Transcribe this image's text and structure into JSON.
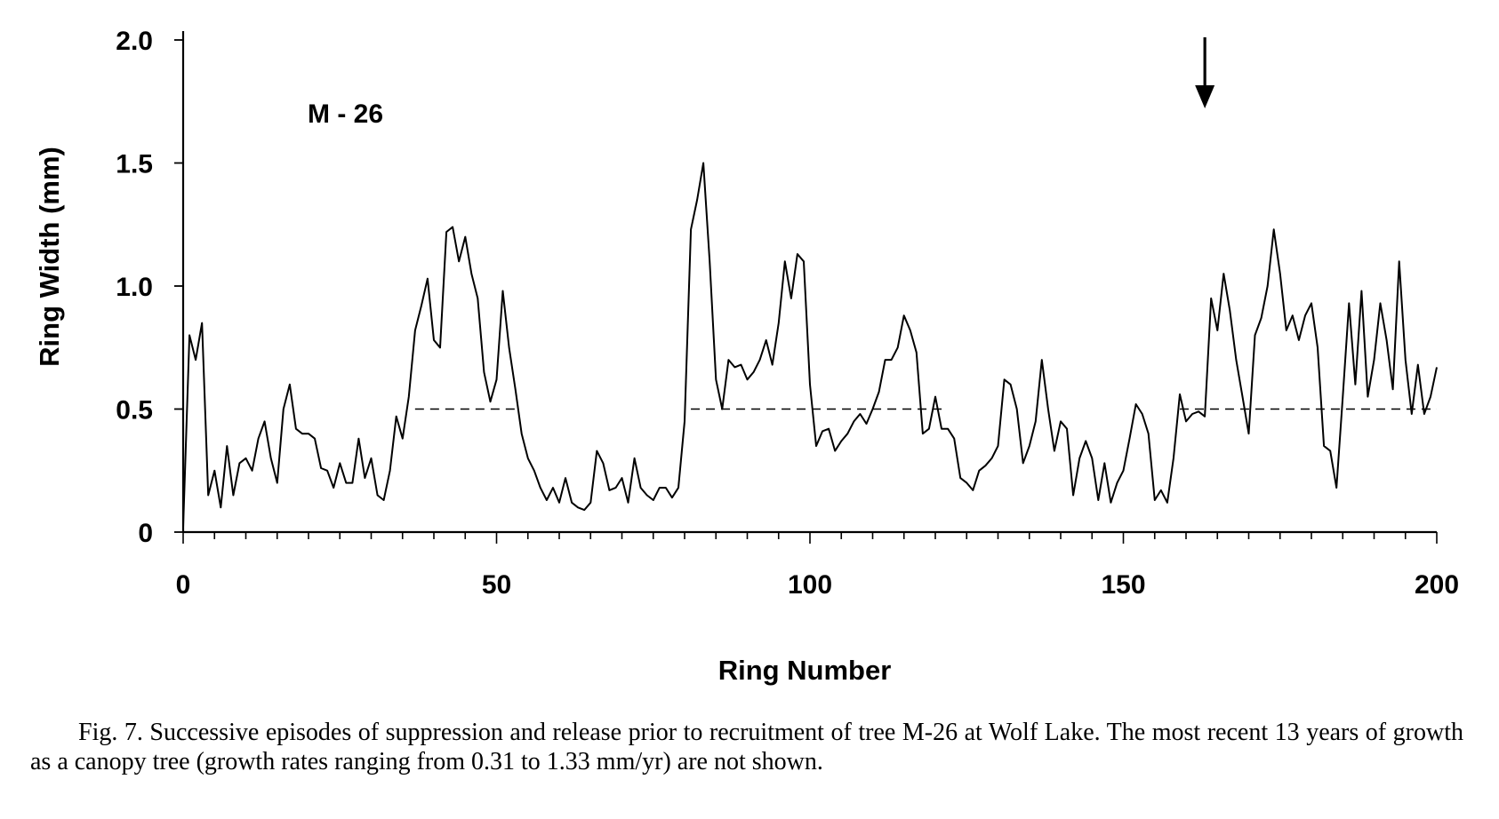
{
  "chart_data": {
    "type": "line",
    "panel_label": "M - 26",
    "xlabel": "Ring Number",
    "ylabel": "Ring Width (mm)",
    "xlim": [
      0,
      200
    ],
    "ylim": [
      0,
      2.0
    ],
    "x_ticks": [
      "0",
      "50",
      "100",
      "150",
      "200"
    ],
    "y_ticks": [
      "0",
      "0.5",
      "1.0",
      "1.5",
      "2.0"
    ],
    "grid": false,
    "legend": "none",
    "threshold_segments": [
      {
        "y": 0.5,
        "x_start": 37,
        "x_end": 53
      },
      {
        "y": 0.5,
        "x_start": 81,
        "x_end": 121
      },
      {
        "y": 0.5,
        "x_start": 159,
        "x_end": 200
      }
    ],
    "arrow_at_x": 163,
    "series": [
      {
        "x": [
          0,
          1,
          2,
          3,
          4,
          5,
          6,
          7,
          8,
          9,
          10,
          11,
          12,
          13,
          14,
          15,
          16,
          17,
          18,
          19,
          20,
          21,
          22,
          23,
          24,
          25,
          26,
          27,
          28,
          29,
          30,
          31,
          32,
          33,
          34,
          35,
          36,
          37,
          38,
          39,
          40,
          41,
          42,
          43,
          44,
          45,
          46,
          47,
          48,
          49,
          50,
          51,
          52,
          53,
          54,
          55,
          56,
          57,
          58,
          59,
          60,
          61,
          62,
          63,
          64,
          65,
          66,
          67,
          68,
          69,
          70,
          71,
          72,
          73,
          74,
          75,
          76,
          77,
          78,
          79,
          80,
          81,
          82,
          83,
          84,
          85,
          86,
          87,
          88,
          89,
          90,
          91,
          92,
          93,
          94,
          95,
          96,
          97,
          98,
          99,
          100,
          101,
          102,
          103,
          104,
          105,
          106,
          107,
          108,
          109,
          110,
          111,
          112,
          113,
          114,
          115,
          116,
          117,
          118,
          119,
          120,
          121,
          122,
          123,
          124,
          125,
          126,
          127,
          128,
          129,
          130,
          131,
          132,
          133,
          134,
          135,
          136,
          137,
          138,
          139,
          140,
          141,
          142,
          143,
          144,
          145,
          146,
          147,
          148,
          149,
          150,
          151,
          152,
          153,
          154,
          155,
          156,
          157,
          158,
          159,
          160,
          161,
          162,
          163,
          164,
          165,
          166,
          167,
          168,
          169,
          170,
          171,
          172,
          173,
          174,
          175,
          176,
          177,
          178,
          179,
          180,
          181,
          182,
          183,
          184,
          185,
          186,
          187,
          188,
          189,
          190,
          191,
          192,
          193,
          194,
          195,
          196,
          197,
          198,
          199,
          200
        ],
        "values": [
          0.02,
          0.8,
          0.7,
          0.85,
          0.15,
          0.25,
          0.1,
          0.35,
          0.15,
          0.28,
          0.3,
          0.25,
          0.38,
          0.45,
          0.3,
          0.2,
          0.5,
          0.6,
          0.42,
          0.4,
          0.4,
          0.38,
          0.26,
          0.25,
          0.18,
          0.28,
          0.2,
          0.2,
          0.38,
          0.22,
          0.3,
          0.15,
          0.13,
          0.25,
          0.47,
          0.38,
          0.55,
          0.82,
          0.92,
          1.03,
          0.78,
          0.75,
          1.22,
          1.24,
          1.1,
          1.2,
          1.05,
          0.95,
          0.65,
          0.53,
          0.62,
          0.98,
          0.75,
          0.58,
          0.4,
          0.3,
          0.25,
          0.18,
          0.13,
          0.18,
          0.12,
          0.22,
          0.12,
          0.1,
          0.09,
          0.12,
          0.33,
          0.28,
          0.17,
          0.18,
          0.22,
          0.12,
          0.3,
          0.18,
          0.15,
          0.13,
          0.18,
          0.18,
          0.14,
          0.18,
          0.45,
          1.23,
          1.35,
          1.5,
          1.1,
          0.62,
          0.5,
          0.7,
          0.67,
          0.68,
          0.62,
          0.65,
          0.7,
          0.78,
          0.68,
          0.85,
          1.1,
          0.95,
          1.13,
          1.1,
          0.6,
          0.35,
          0.41,
          0.42,
          0.33,
          0.37,
          0.4,
          0.45,
          0.48,
          0.44,
          0.5,
          0.57,
          0.7,
          0.7,
          0.75,
          0.88,
          0.82,
          0.73,
          0.4,
          0.42,
          0.55,
          0.42,
          0.42,
          0.38,
          0.22,
          0.2,
          0.17,
          0.25,
          0.27,
          0.3,
          0.35,
          0.62,
          0.6,
          0.5,
          0.28,
          0.35,
          0.45,
          0.7,
          0.5,
          0.33,
          0.45,
          0.42,
          0.15,
          0.3,
          0.37,
          0.3,
          0.13,
          0.28,
          0.12,
          0.2,
          0.25,
          0.38,
          0.52,
          0.48,
          0.4,
          0.13,
          0.17,
          0.12,
          0.3,
          0.56,
          0.45,
          0.48,
          0.49,
          0.47,
          0.95,
          0.82,
          1.05,
          0.9,
          0.7,
          0.55,
          0.4,
          0.8,
          0.87,
          1.0,
          1.23,
          1.05,
          0.82,
          0.88,
          0.78,
          0.88,
          0.93,
          0.75,
          0.35,
          0.33,
          0.18,
          0.55,
          0.93,
          0.6,
          0.98,
          0.55,
          0.7,
          0.93,
          0.78,
          0.58,
          1.1,
          0.7,
          0.48,
          0.68,
          0.48,
          0.55,
          0.67
        ]
      }
    ]
  },
  "caption": "Fig. 7. Successive episodes of suppression and release prior to recruitment of tree M-26 at Wolf Lake. The most recent 13 years of growth as a canopy tree (growth rates ranging from 0.31 to 1.33 mm/yr) are not shown."
}
